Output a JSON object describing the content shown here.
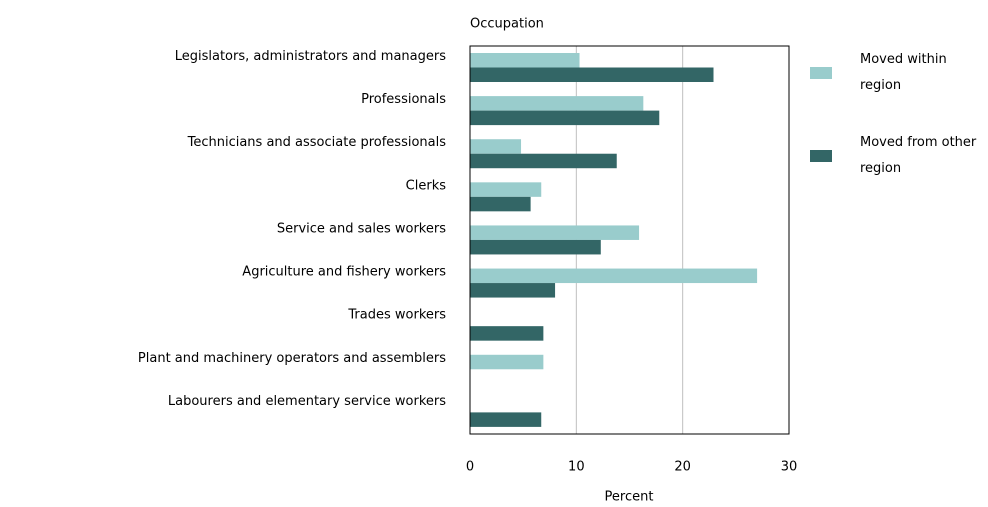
{
  "chart_data": {
    "type": "bar",
    "orientation": "horizontal",
    "y_label": "Occupation",
    "x_label": "Percent",
    "categories": [
      "Legislators, administrators and managers",
      "Professionals",
      "Technicians and associate professionals",
      "Clerks",
      "Service and sales workers",
      "Agriculture and fishery workers",
      "Trades workers",
      "Plant and machinery operators and assemblers",
      "Labourers and elementary service workers"
    ],
    "series": [
      {
        "name": "Moved within region",
        "color": "#99cccc",
        "values": [
          10.3,
          16.3,
          4.8,
          6.7,
          15.9,
          27.0,
          null,
          6.9,
          null
        ]
      },
      {
        "name": "Moved from other region",
        "color": "#336666",
        "values": [
          22.9,
          17.8,
          13.8,
          5.7,
          12.3,
          8.0,
          6.9,
          null,
          6.7
        ]
      }
    ],
    "xlim": [
      0,
      30
    ],
    "xticks": [
      0,
      10,
      20,
      30
    ],
    "grid": true,
    "legend": "right"
  }
}
